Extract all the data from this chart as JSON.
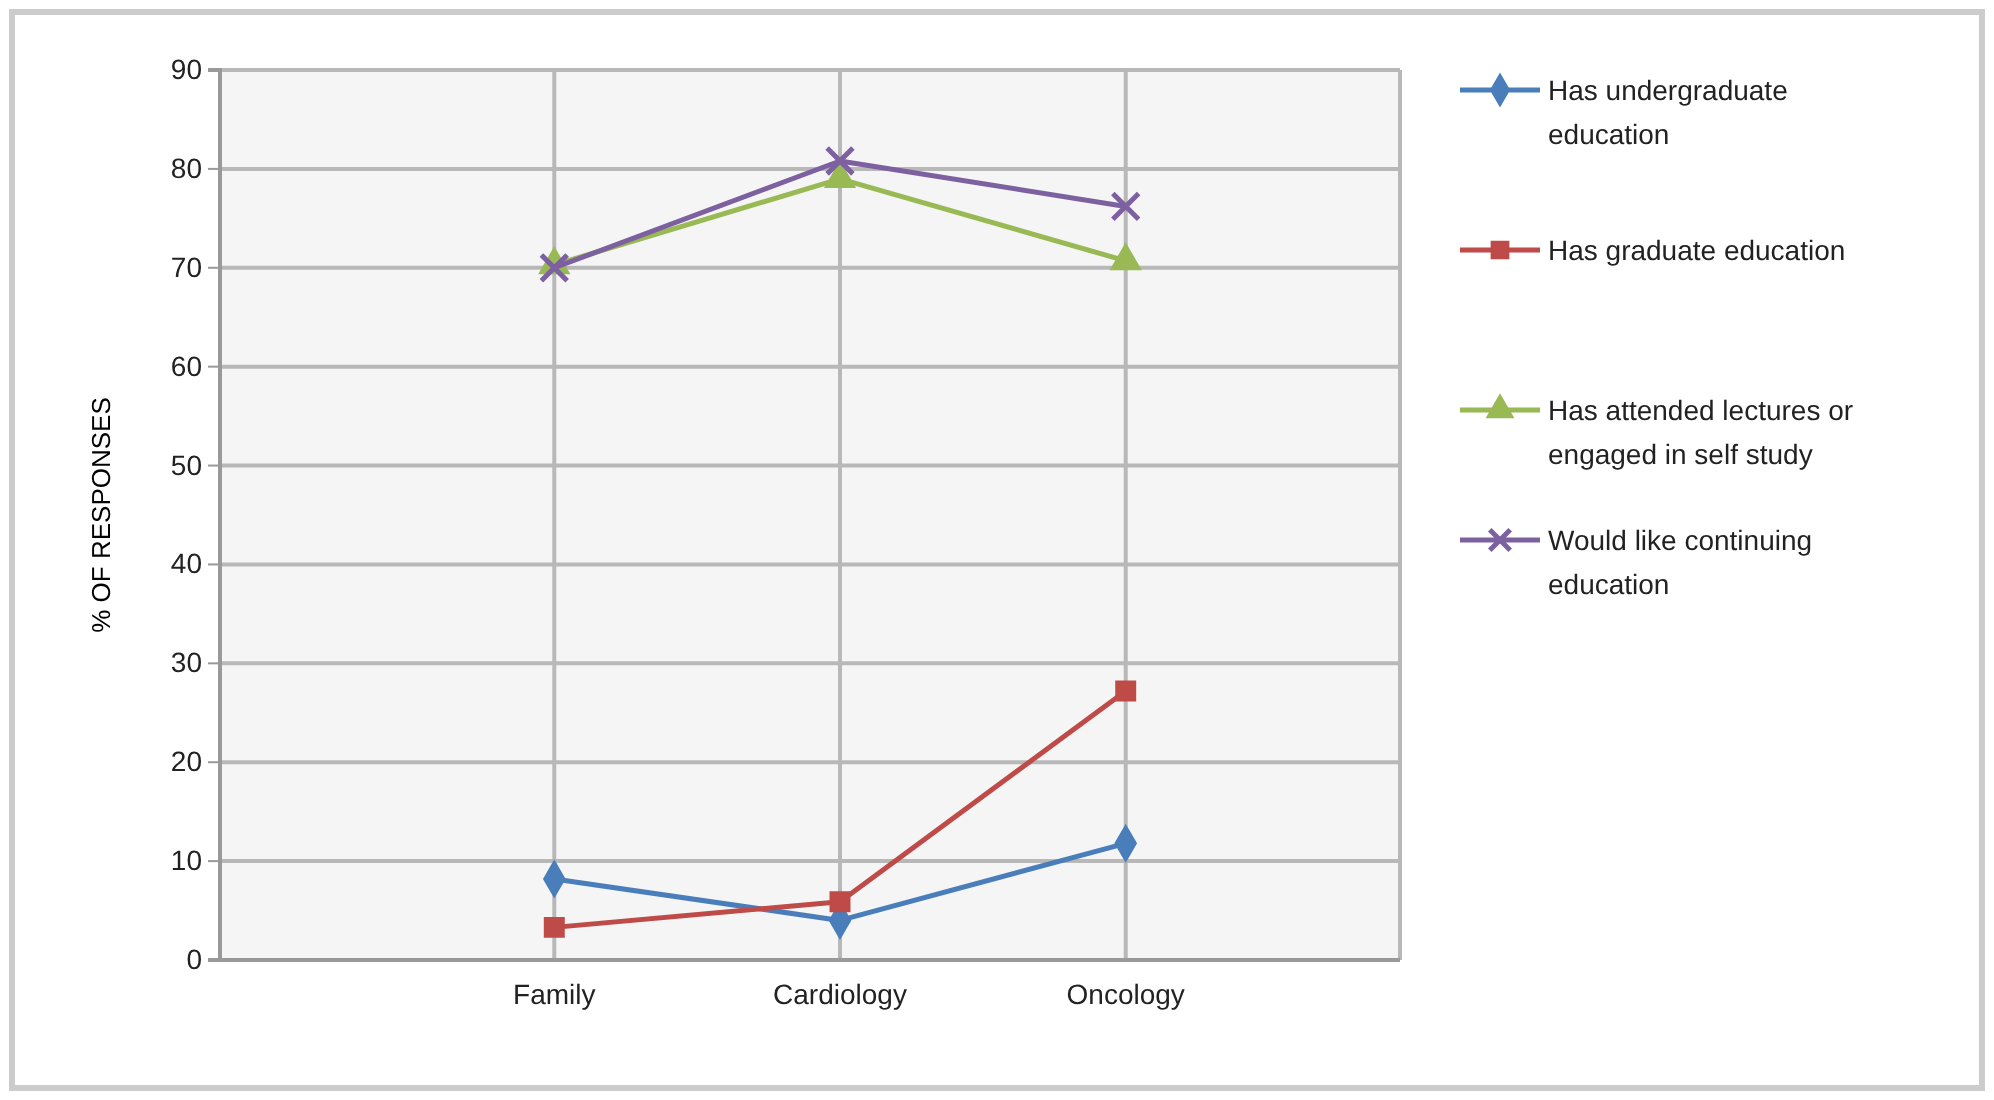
{
  "chart_data": {
    "type": "line",
    "ylabel": "% OF RESPONSES",
    "categories": [
      "Family",
      "Cardiology",
      "Oncology"
    ],
    "series": [
      {
        "name": "Has undergraduate education",
        "color": "#4a7ebb",
        "marker": "diamond",
        "values": [
          8.2,
          4.0,
          11.8
        ]
      },
      {
        "name": "Has graduate education",
        "color": "#be4b48",
        "marker": "square",
        "values": [
          3.3,
          5.9,
          27.2
        ]
      },
      {
        "name": "Has attended lectures or engaged in self study",
        "color": "#98b954",
        "marker": "triangle",
        "values": [
          70.3,
          79.0,
          70.7
        ]
      },
      {
        "name": "Would like continuing education",
        "color": "#7d60a0",
        "marker": "cross",
        "values": [
          70.0,
          80.8,
          76.2
        ]
      }
    ],
    "ylim": [
      0,
      90
    ],
    "yticks": [
      0,
      10,
      20,
      30,
      40,
      50,
      60,
      70,
      80,
      90
    ],
    "grid": true,
    "legend": "right",
    "line_style": "solid"
  }
}
